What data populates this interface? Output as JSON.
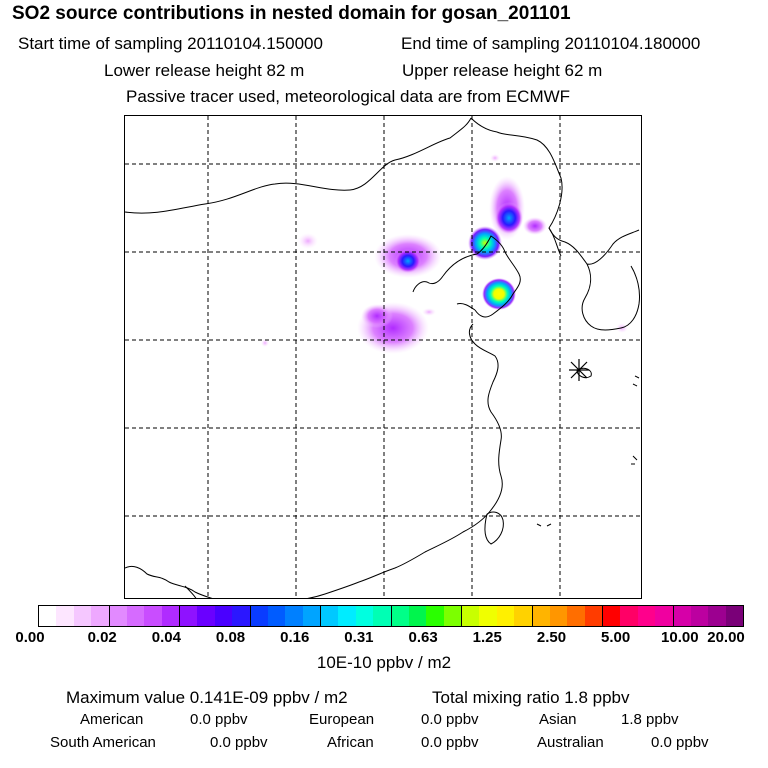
{
  "header": {
    "title": "SO2 source contributions in nested domain for gosan_201101",
    "start_time": "Start time of sampling 20110104.150000",
    "end_time": "End time of sampling 20110104.180000",
    "lower_release": "Lower release height   82 m",
    "upper_release": "Upper release height   62 m",
    "note": "Passive tracer used, meteorological data are from ECMWF"
  },
  "map": {
    "station_marker": "receptor-asterisk",
    "line_color": "#000000",
    "plumes": [
      {
        "name": "inner-mongolia-plume",
        "peak_color": "#1e90ff"
      },
      {
        "name": "beijing-plume",
        "peak_color": "#00e0ff"
      },
      {
        "name": "bohai-north-plume",
        "peak_color": "#1e90ff"
      },
      {
        "name": "dalian-plume",
        "peak_color": "#ffff00"
      },
      {
        "name": "hebei-plume",
        "peak_color": "#cc33ff"
      }
    ]
  },
  "colorbar": {
    "colors": [
      "#ffffff",
      "#fde6ff",
      "#f5c7ff",
      "#eea8ff",
      "#e28aff",
      "#d66bff",
      "#c94dff",
      "#b02bff",
      "#8f12ff",
      "#6a00ff",
      "#4a00ff",
      "#2b17ff",
      "#0a3cff",
      "#005cff",
      "#0080ff",
      "#00a4ff",
      "#00c8ff",
      "#00ecff",
      "#00ffe0",
      "#00ffb4",
      "#00ff88",
      "#00f54d",
      "#2aff00",
      "#7cff00",
      "#c8ff00",
      "#f0ff00",
      "#fff000",
      "#ffd200",
      "#ffb400",
      "#ff9600",
      "#ff6e00",
      "#ff3c00",
      "#ff0000",
      "#ff0066",
      "#ff008c",
      "#f000a0",
      "#d600a8",
      "#bc00a0",
      "#9c0090",
      "#7a0078"
    ],
    "ticks": [
      "0.00",
      "0.02",
      "0.04",
      "0.08",
      "0.16",
      "0.31",
      "0.63",
      "1.25",
      "2.50",
      "5.00",
      "10.00",
      "20.00"
    ],
    "unit": "10E-10 ppbv / m2"
  },
  "stats": {
    "max_value": "Maximum value  0.141E-09 ppbv / m2",
    "total_mixing": "Total mixing ratio        1.8 ppbv",
    "regions": [
      {
        "label": "American",
        "value": "0.0 ppbv"
      },
      {
        "label": "European",
        "value": "0.0 ppbv"
      },
      {
        "label": "Asian",
        "value": "1.8 ppbv"
      },
      {
        "label": "South American",
        "value": "0.0 ppbv"
      },
      {
        "label": "African",
        "value": "0.0 ppbv"
      },
      {
        "label": "Australian",
        "value": "0.0 ppbv"
      }
    ]
  }
}
